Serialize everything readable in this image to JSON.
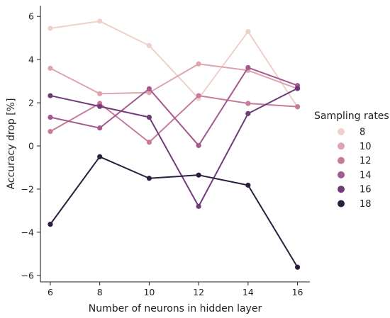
{
  "chart_data": {
    "type": "line",
    "xlabel": "Number of neurons in hidden layer",
    "ylabel": "Accuracy drop [%]",
    "x": [
      6,
      8,
      10,
      12,
      14,
      16
    ],
    "xticks": [
      "6",
      "8",
      "10",
      "12",
      "14",
      "16"
    ],
    "yticks": [
      "−6",
      "−4",
      "−2",
      "0",
      "2",
      "4",
      "6"
    ],
    "xlim": [
      5.6,
      16.5
    ],
    "ylim": [
      -6.3,
      6.5
    ],
    "grid": false,
    "legend": {
      "title": "Sampling rates",
      "placement": "right"
    },
    "series": [
      {
        "name": "8",
        "color": "#edd1cb",
        "values": [
          5.45,
          5.78,
          4.65,
          2.2,
          5.3,
          1.8
        ]
      },
      {
        "name": "10",
        "color": "#dea5ad",
        "values": [
          3.6,
          2.42,
          2.47,
          3.8,
          3.5,
          2.65
        ]
      },
      {
        "name": "12",
        "color": "#c67b9c",
        "values": [
          0.67,
          1.97,
          0.17,
          2.33,
          1.97,
          1.82
        ]
      },
      {
        "name": "14",
        "color": "#a35a8f",
        "values": [
          1.33,
          0.83,
          2.65,
          0.02,
          3.63,
          2.8
        ]
      },
      {
        "name": "16",
        "color": "#6f3c78",
        "values": [
          2.33,
          1.83,
          1.33,
          -2.8,
          1.5,
          2.67
        ]
      },
      {
        "name": "18",
        "color": "#2d1e3e",
        "values": [
          -3.63,
          -0.5,
          -1.5,
          -1.35,
          -1.82,
          -5.62
        ]
      }
    ]
  }
}
